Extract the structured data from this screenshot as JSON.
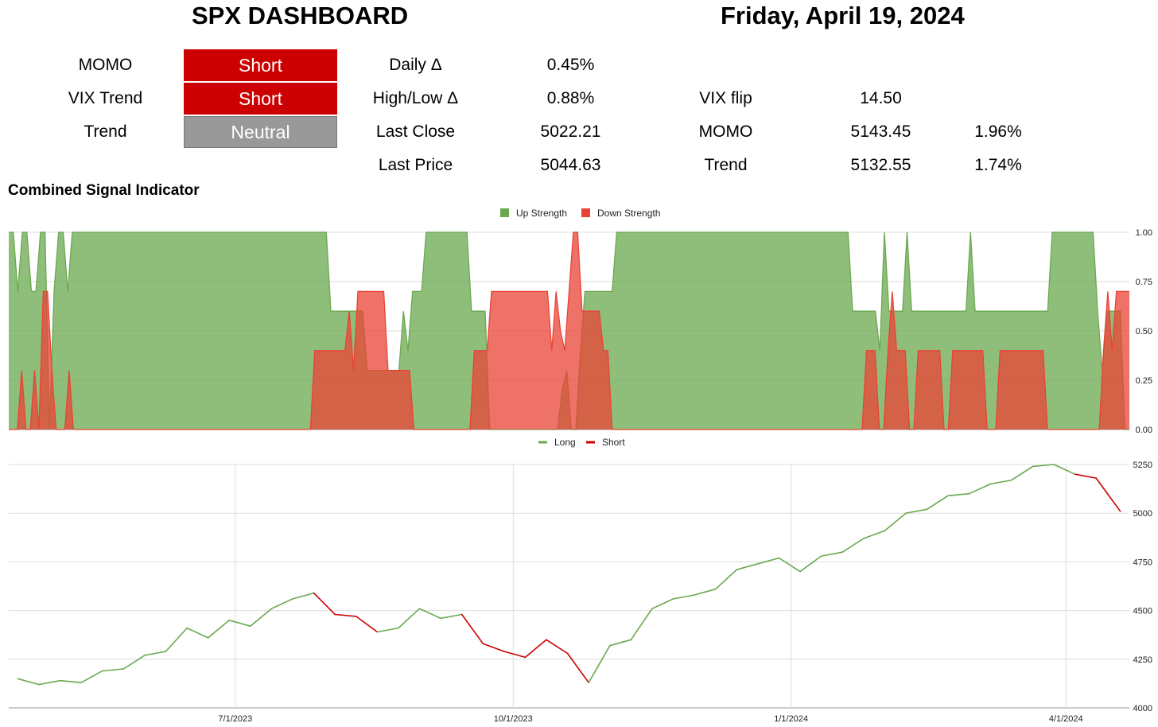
{
  "header": {
    "title": "SPX DASHBOARD",
    "date": "Friday, April 19, 2024"
  },
  "signals": [
    {
      "label": "MOMO",
      "value": "Short",
      "color": "#cc0000"
    },
    {
      "label": "VIX Trend",
      "value": "Short",
      "color": "#cc0000"
    },
    {
      "label": "Trend",
      "value": "Neutral",
      "color": "#999999"
    }
  ],
  "stats": [
    {
      "label": "Daily Δ",
      "value": "0.45%"
    },
    {
      "label": "High/Low Δ",
      "value": "0.88%"
    },
    {
      "label": "Last Close",
      "value": "5022.21"
    },
    {
      "label": "Last Price",
      "value": "5044.63"
    }
  ],
  "levels": [
    {
      "label": "VIX flip",
      "value": "14.50",
      "pct": ""
    },
    {
      "label": "MOMO",
      "value": "5143.45",
      "pct": "1.96%"
    },
    {
      "label": "Trend",
      "value": "5132.55",
      "pct": "1.74%"
    }
  ],
  "section_title": "Combined Signal Indicator",
  "chart_data": [
    {
      "type": "area",
      "title": "",
      "legend_position": "top-center",
      "ylim": [
        0,
        1
      ],
      "y_ticks": [
        "0.00",
        "0.25",
        "0.50",
        "0.75",
        "1.00"
      ],
      "grid": true,
      "series": [
        {
          "name": "Up Strength",
          "color": "#6aa84f",
          "values": [
            1,
            1,
            0.7,
            1,
            1,
            0.7,
            0.7,
            1,
            1,
            0,
            0.7,
            1,
            1,
            0.7,
            1,
            1,
            1,
            1,
            1,
            1,
            1,
            1,
            1,
            1,
            1,
            1,
            1,
            1,
            1,
            1,
            1,
            1,
            1,
            1,
            1,
            1,
            1,
            1,
            1,
            1,
            1,
            1,
            1,
            1,
            1,
            1,
            1,
            1,
            1,
            1,
            1,
            1,
            1,
            1,
            1,
            1,
            1,
            1,
            1,
            1,
            1,
            1,
            1,
            1,
            1,
            1,
            1,
            1,
            1,
            1,
            1,
            0.6,
            0.6,
            0.6,
            0.6,
            0.6,
            0.6,
            0.6,
            0.6,
            0.3,
            0.3,
            0.3,
            0.3,
            0.3,
            0.3,
            0.3,
            0.3,
            0.6,
            0.4,
            0.7,
            0.7,
            0.7,
            1,
            1,
            1,
            1,
            1,
            1,
            1,
            1,
            1,
            1,
            0.6,
            0.6,
            0.6,
            0.6,
            0,
            0,
            0,
            0,
            0,
            0,
            0,
            0,
            0,
            0,
            0,
            0,
            0,
            0,
            0,
            0,
            0.2,
            0.3,
            0,
            0,
            0.4,
            0.7,
            0.7,
            0.7,
            0.7,
            0.7,
            0.7,
            0.7,
            1,
            1,
            1,
            1,
            1,
            1,
            1,
            1,
            1,
            1,
            1,
            1,
            1,
            1,
            1,
            1,
            1,
            1,
            1,
            1,
            1,
            1,
            1,
            1,
            1,
            1,
            1,
            1,
            1,
            1,
            1,
            1,
            1,
            1,
            1,
            1,
            1,
            1,
            1,
            1,
            1,
            1,
            1,
            1,
            1,
            1,
            1,
            1,
            1,
            1,
            1,
            1,
            0.6,
            0.6,
            0.6,
            0.6,
            0.6,
            0.6,
            0.4,
            1,
            0.6,
            0.6,
            0.6,
            0.6,
            1,
            0.6,
            0.6,
            0.6,
            0.6,
            0.6,
            0.6,
            0.6,
            0.6,
            0.6,
            0.6,
            0.6,
            0.6,
            0.6,
            1,
            0.6,
            0.6,
            0.6,
            0.6,
            0.6,
            0.6,
            0.6,
            0.6,
            0.6,
            0.6,
            0.6,
            0.6,
            0.6,
            0.6,
            0.6,
            0.6,
            0.6,
            1,
            1,
            1,
            1,
            1,
            1,
            1,
            1,
            1,
            1,
            0.6,
            0.3,
            0.6,
            0.6,
            0.6,
            0.6,
            0,
            0
          ]
        },
        {
          "name": "Down Strength",
          "color": "#ea4335",
          "values": [
            0,
            0,
            0,
            0.3,
            0,
            0,
            0.3,
            0,
            0.7,
            0.7,
            0.3,
            0,
            0,
            0,
            0.3,
            0,
            0,
            0,
            0,
            0,
            0,
            0,
            0,
            0,
            0,
            0,
            0,
            0,
            0,
            0,
            0,
            0,
            0,
            0,
            0,
            0,
            0,
            0,
            0,
            0,
            0,
            0,
            0,
            0,
            0,
            0,
            0,
            0,
            0,
            0,
            0,
            0,
            0,
            0,
            0,
            0,
            0,
            0,
            0,
            0,
            0,
            0,
            0,
            0,
            0,
            0,
            0,
            0,
            0,
            0,
            0,
            0.4,
            0.4,
            0.4,
            0.4,
            0.4,
            0.4,
            0.4,
            0.4,
            0.6,
            0.3,
            0.7,
            0.7,
            0.7,
            0.7,
            0.7,
            0.7,
            0.7,
            0.3,
            0.3,
            0.3,
            0.3,
            0.3,
            0.3,
            0,
            0,
            0,
            0,
            0,
            0,
            0,
            0,
            0,
            0,
            0,
            0,
            0,
            0,
            0.4,
            0.4,
            0.4,
            0.4,
            0.7,
            0.7,
            0.7,
            0.7,
            0.7,
            0.7,
            0.7,
            0.7,
            0.7,
            0.7,
            0.7,
            0.7,
            0.7,
            0.7,
            0.4,
            0.7,
            0.5,
            0.4,
            0.7,
            1,
            1,
            0.6,
            0.6,
            0.6,
            0.6,
            0.6,
            0.4,
            0.4,
            0,
            0,
            0,
            0,
            0,
            0,
            0,
            0,
            0,
            0,
            0,
            0,
            0,
            0,
            0,
            0,
            0,
            0,
            0,
            0,
            0,
            0,
            0,
            0,
            0,
            0,
            0,
            0,
            0,
            0,
            0,
            0,
            0,
            0,
            0,
            0,
            0,
            0,
            0,
            0,
            0,
            0,
            0,
            0,
            0,
            0,
            0,
            0,
            0,
            0,
            0,
            0,
            0,
            0,
            0,
            0,
            0,
            0,
            0,
            0.4,
            0.4,
            0.4,
            0,
            0,
            0.4,
            0.7,
            0.4,
            0.4,
            0.4,
            0,
            0,
            0.4,
            0.4,
            0.4,
            0.4,
            0.4,
            0.4,
            0,
            0,
            0.4,
            0.4,
            0.4,
            0.4,
            0.4,
            0.4,
            0.4,
            0.4,
            0,
            0,
            0,
            0.4,
            0.4,
            0.4,
            0.4,
            0.4,
            0.4,
            0.4,
            0.4,
            0.4,
            0.4,
            0.4,
            0,
            0,
            0,
            0,
            0,
            0,
            0,
            0,
            0,
            0,
            0,
            0,
            0,
            0.4,
            0.7,
            0.4,
            0.7,
            0.7,
            0.7,
            0.7
          ]
        }
      ]
    },
    {
      "type": "line",
      "title": "",
      "legend_position": "top-center",
      "ylim": [
        4000,
        5250
      ],
      "y_ticks": [
        "4000",
        "4250",
        "4500",
        "4750",
        "5000",
        "5250"
      ],
      "x_ticks": [
        "7/1/2023",
        "10/1/2023",
        "1/1/2024",
        "4/1/2024"
      ],
      "grid": true,
      "series": [
        {
          "name": "Long",
          "color": "#6aa84f"
        },
        {
          "name": "Short",
          "color": "#cc0000"
        }
      ],
      "x": [
        "2023-04-20",
        "2023-04-27",
        "2023-05-04",
        "2023-05-11",
        "2023-05-18",
        "2023-05-25",
        "2023-06-01",
        "2023-06-08",
        "2023-06-15",
        "2023-06-22",
        "2023-06-29",
        "2023-07-06",
        "2023-07-13",
        "2023-07-20",
        "2023-07-27",
        "2023-08-03",
        "2023-08-10",
        "2023-08-17",
        "2023-08-24",
        "2023-08-31",
        "2023-09-07",
        "2023-09-14",
        "2023-09-21",
        "2023-09-28",
        "2023-10-05",
        "2023-10-12",
        "2023-10-19",
        "2023-10-26",
        "2023-11-02",
        "2023-11-09",
        "2023-11-16",
        "2023-11-23",
        "2023-11-30",
        "2023-12-07",
        "2023-12-14",
        "2023-12-21",
        "2023-12-28",
        "2024-01-04",
        "2024-01-11",
        "2024-01-18",
        "2024-01-25",
        "2024-02-01",
        "2024-02-08",
        "2024-02-15",
        "2024-02-22",
        "2024-02-29",
        "2024-03-07",
        "2024-03-14",
        "2024-03-21",
        "2024-03-28",
        "2024-04-04",
        "2024-04-11",
        "2024-04-19"
      ],
      "values": [
        4150,
        4120,
        4140,
        4130,
        4190,
        4200,
        4270,
        4290,
        4410,
        4360,
        4450,
        4420,
        4510,
        4560,
        4590,
        4480,
        4470,
        4390,
        4410,
        4510,
        4460,
        4480,
        4330,
        4290,
        4260,
        4350,
        4280,
        4130,
        4320,
        4350,
        4510,
        4560,
        4580,
        4610,
        4710,
        4740,
        4770,
        4700,
        4780,
        4800,
        4870,
        4910,
        5000,
        5020,
        5090,
        5100,
        5150,
        5170,
        5240,
        5250,
        5200,
        5180,
        5010
      ],
      "signal": [
        "Long",
        "Long",
        "Long",
        "Long",
        "Long",
        "Long",
        "Long",
        "Long",
        "Long",
        "Long",
        "Long",
        "Long",
        "Long",
        "Long",
        "Long",
        "Short",
        "Short",
        "Short",
        "Long",
        "Long",
        "Long",
        "Long",
        "Short",
        "Short",
        "Short",
        "Short",
        "Short",
        "Short",
        "Long",
        "Long",
        "Long",
        "Long",
        "Long",
        "Long",
        "Long",
        "Long",
        "Long",
        "Long",
        "Long",
        "Long",
        "Long",
        "Long",
        "Long",
        "Long",
        "Long",
        "Long",
        "Long",
        "Long",
        "Long",
        "Long",
        "Long",
        "Short",
        "Short"
      ]
    }
  ]
}
